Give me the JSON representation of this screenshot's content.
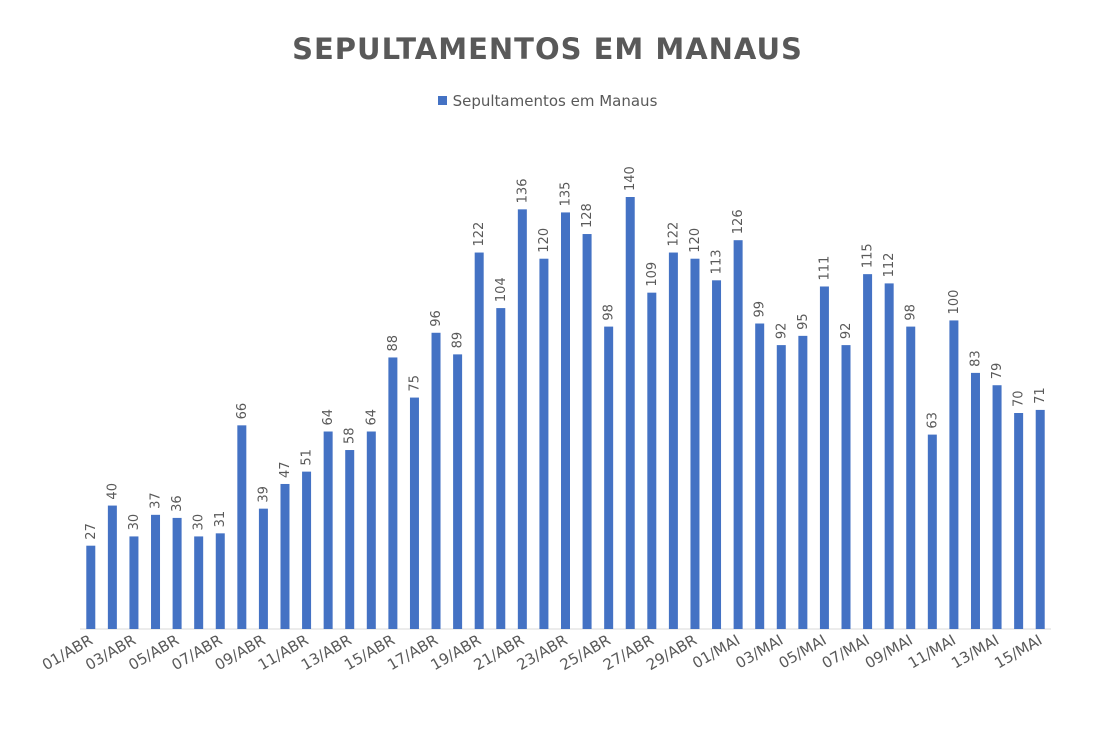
{
  "chart_data": {
    "type": "bar",
    "title": "SEPULTAMENTOS EM MANAUS",
    "xlabel": "",
    "ylabel": "",
    "legend": {
      "position": "top",
      "entries": [
        "Sepultamentos em Manaus"
      ]
    },
    "grid": false,
    "ylim": [
      0,
      150
    ],
    "color": "#4472c4",
    "categories": [
      "01/ABR",
      "02/ABR",
      "03/ABR",
      "04/ABR",
      "05/ABR",
      "06/ABR",
      "07/ABR",
      "08/ABR",
      "09/ABR",
      "10/ABR",
      "11/ABR",
      "12/ABR",
      "13/ABR",
      "14/ABR",
      "15/ABR",
      "16/ABR",
      "17/ABR",
      "18/ABR",
      "19/ABR",
      "20/ABR",
      "21/ABR",
      "22/ABR",
      "23/ABR",
      "24/ABR",
      "25/ABR",
      "26/ABR",
      "27/ABR",
      "28/ABR",
      "29/ABR",
      "30/ABR",
      "01/MAI",
      "02/MAI",
      "03/MAI",
      "04/MAI",
      "05/MAI",
      "06/MAI",
      "07/MAI",
      "08/MAI",
      "09/MAI",
      "10/MAI",
      "11/MAI",
      "12/MAI",
      "13/MAI",
      "14/MAI",
      "15/MAI"
    ],
    "tick_labels": [
      "01/ABR",
      "03/ABR",
      "05/ABR",
      "07/ABR",
      "09/ABR",
      "11/ABR",
      "13/ABR",
      "15/ABR",
      "17/ABR",
      "19/ABR",
      "21/ABR",
      "23/ABR",
      "25/ABR",
      "27/ABR",
      "29/ABR",
      "01/MAI",
      "03/MAI",
      "05/MAI",
      "07/MAI",
      "09/MAI",
      "11/MAI",
      "13/MAI",
      "15/MAI"
    ],
    "series": [
      {
        "name": "Sepultamentos em Manaus",
        "values": [
          27,
          40,
          30,
          37,
          36,
          30,
          31,
          66,
          39,
          47,
          51,
          64,
          58,
          64,
          88,
          75,
          96,
          89,
          122,
          104,
          136,
          120,
          135,
          128,
          98,
          140,
          109,
          122,
          120,
          113,
          126,
          99,
          92,
          95,
          111,
          92,
          115,
          112,
          98,
          63,
          100,
          83,
          79,
          70,
          71
        ]
      }
    ]
  }
}
